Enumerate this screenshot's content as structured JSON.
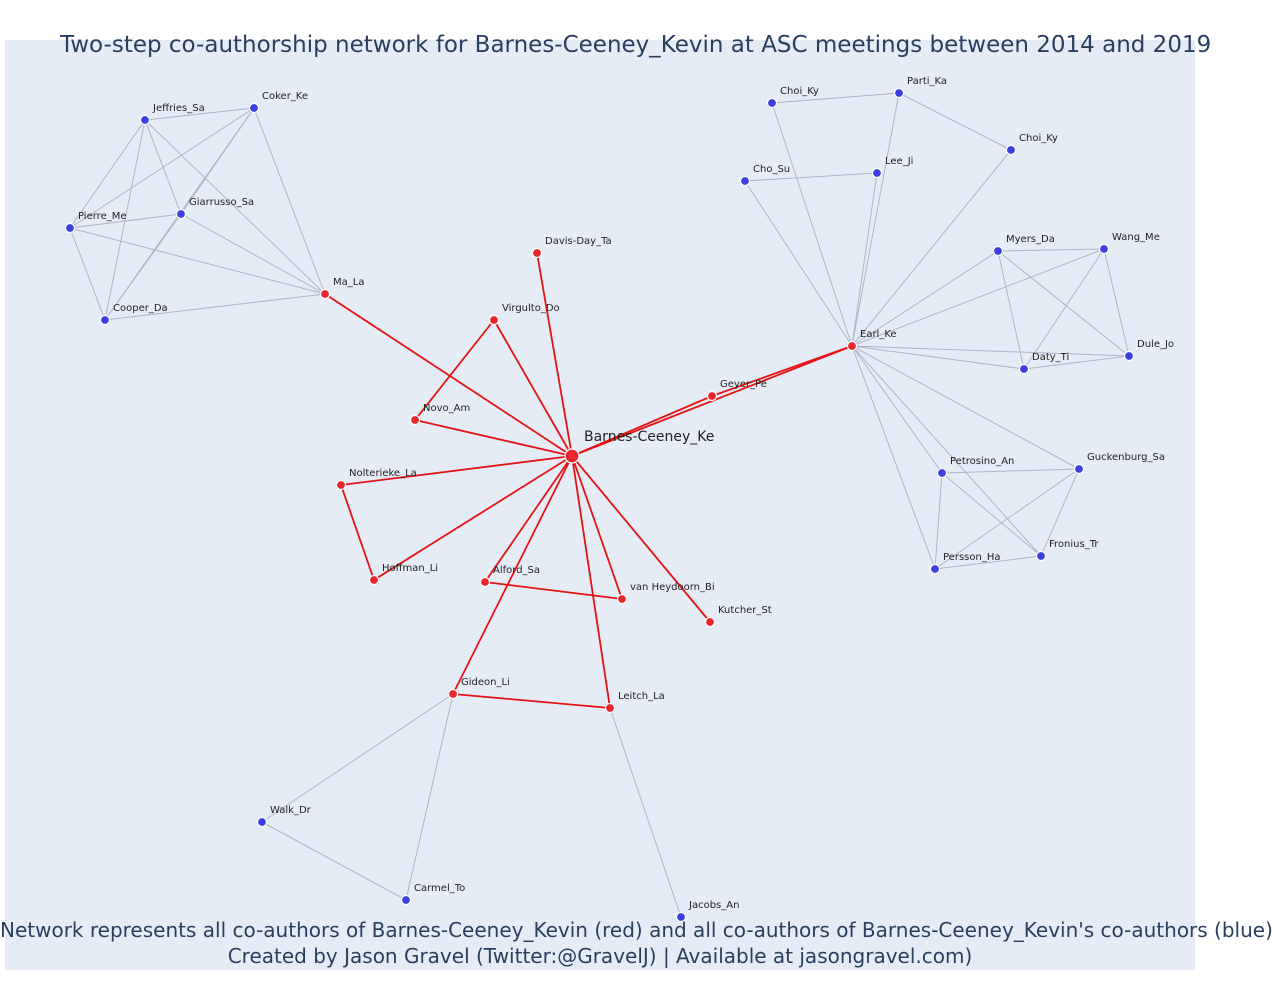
{
  "title": "Two-step co-authorship network for Barnes-Ceeney_Kevin at ASC meetings between 2014 and 2019",
  "footer": {
    "line1": "Network represents all co-authors of Barnes-Ceeney_Kevin (red) and all co-authors of Barnes-Ceeney_Kevin's co-authors (blue)",
    "line2": "Created by Jason Gravel (Twitter:@GravelJ) | Available at jasongravel.com)"
  },
  "colors": {
    "background": "#e5ecf6",
    "first_step": "#e8262d",
    "second_step": "#3d3fe0",
    "first_edge": "#e51414",
    "second_edge": "#b0b4c6",
    "text": "#2a3f5f"
  },
  "chart_data": {
    "type": "network",
    "center": "Barnes-Ceeney_Ke",
    "nodes": [
      {
        "id": "Barnes-Ceeney_Ke",
        "group": "center"
      },
      {
        "id": "Davis-Day_Ta",
        "group": "first_step"
      },
      {
        "id": "Virgulto_Do",
        "group": "first_step"
      },
      {
        "id": "Ma_La",
        "group": "first_step"
      },
      {
        "id": "Novo_Am",
        "group": "first_step"
      },
      {
        "id": "Nolterieke_La",
        "group": "first_step"
      },
      {
        "id": "Hoffman_Li",
        "group": "first_step"
      },
      {
        "id": "Alford_Sa",
        "group": "first_step"
      },
      {
        "id": "van Heydoorn_Bi",
        "group": "first_step"
      },
      {
        "id": "Kutcher_St",
        "group": "first_step"
      },
      {
        "id": "Gideon_Li",
        "group": "first_step"
      },
      {
        "id": "Leitch_La",
        "group": "first_step"
      },
      {
        "id": "Geyer_Pe",
        "group": "first_step"
      },
      {
        "id": "Earl_Ke",
        "group": "first_step"
      },
      {
        "id": "Jeffries_Sa",
        "group": "second_step"
      },
      {
        "id": "Coker_Ke",
        "group": "second_step"
      },
      {
        "id": "Giarrusso_Sa",
        "group": "second_step"
      },
      {
        "id": "Pierre_Me",
        "group": "second_step"
      },
      {
        "id": "Cooper_Da",
        "group": "second_step"
      },
      {
        "id": "Choi_Ky",
        "group": "second_step"
      },
      {
        "id": "Parti_Ka",
        "group": "second_step"
      },
      {
        "id": "Choi_Ky ",
        "group": "second_step"
      },
      {
        "id": "Cho_Su",
        "group": "second_step"
      },
      {
        "id": "Lee_Ji",
        "group": "second_step"
      },
      {
        "id": "Myers_Da",
        "group": "second_step"
      },
      {
        "id": "Wang_Me",
        "group": "second_step"
      },
      {
        "id": "Dule_Jo",
        "group": "second_step"
      },
      {
        "id": "Daty_Ti",
        "group": "second_step"
      },
      {
        "id": "Petrosino_An",
        "group": "second_step"
      },
      {
        "id": "Guckenburg_Sa",
        "group": "second_step"
      },
      {
        "id": "Persson_Ha",
        "group": "second_step"
      },
      {
        "id": "Fronius_Tr",
        "group": "second_step"
      },
      {
        "id": "Walk_Dr",
        "group": "second_step"
      },
      {
        "id": "Carmel_To",
        "group": "second_step"
      },
      {
        "id": "Jacobs_An",
        "group": "second_step"
      }
    ],
    "edges": [
      [
        "Barnes-Ceeney_Ke",
        "Davis-Day_Ta"
      ],
      [
        "Barnes-Ceeney_Ke",
        "Virgulto_Do"
      ],
      [
        "Barnes-Ceeney_Ke",
        "Ma_La"
      ],
      [
        "Barnes-Ceeney_Ke",
        "Novo_Am"
      ],
      [
        "Barnes-Ceeney_Ke",
        "Nolterieke_La"
      ],
      [
        "Barnes-Ceeney_Ke",
        "Hoffman_Li"
      ],
      [
        "Barnes-Ceeney_Ke",
        "Alford_Sa"
      ],
      [
        "Barnes-Ceeney_Ke",
        "van Heydoorn_Bi"
      ],
      [
        "Barnes-Ceeney_Ke",
        "Kutcher_St"
      ],
      [
        "Barnes-Ceeney_Ke",
        "Gideon_Li"
      ],
      [
        "Barnes-Ceeney_Ke",
        "Leitch_La"
      ],
      [
        "Barnes-Ceeney_Ke",
        "Geyer_Pe"
      ],
      [
        "Barnes-Ceeney_Ke",
        "Earl_Ke"
      ],
      [
        "Geyer_Pe",
        "Earl_Ke"
      ],
      [
        "Virgulto_Do",
        "Novo_Am"
      ],
      [
        "Nolterieke_La",
        "Hoffman_Li"
      ],
      [
        "Alford_Sa",
        "van Heydoorn_Bi"
      ],
      [
        "Gideon_Li",
        "Leitch_La"
      ],
      [
        "Ma_La",
        "Jeffries_Sa"
      ],
      [
        "Ma_La",
        "Coker_Ke"
      ],
      [
        "Ma_La",
        "Giarrusso_Sa"
      ],
      [
        "Ma_La",
        "Pierre_Me"
      ],
      [
        "Ma_La",
        "Cooper_Da"
      ],
      [
        "Jeffries_Sa",
        "Coker_Ke"
      ],
      [
        "Jeffries_Sa",
        "Giarrusso_Sa"
      ],
      [
        "Jeffries_Sa",
        "Pierre_Me"
      ],
      [
        "Jeffries_Sa",
        "Cooper_Da"
      ],
      [
        "Coker_Ke",
        "Giarrusso_Sa"
      ],
      [
        "Coker_Ke",
        "Pierre_Me"
      ],
      [
        "Coker_Ke",
        "Cooper_Da"
      ],
      [
        "Giarrusso_Sa",
        "Pierre_Me"
      ],
      [
        "Giarrusso_Sa",
        "Cooper_Da"
      ],
      [
        "Pierre_Me",
        "Cooper_Da"
      ],
      [
        "Earl_Ke",
        "Choi_Ky"
      ],
      [
        "Earl_Ke",
        "Parti_Ka"
      ],
      [
        "Earl_Ke",
        "Choi_Ky "
      ],
      [
        "Earl_Ke",
        "Cho_Su"
      ],
      [
        "Earl_Ke",
        "Lee_Ji"
      ],
      [
        "Choi_Ky",
        "Parti_Ka"
      ],
      [
        "Parti_Ka",
        "Choi_Ky "
      ],
      [
        "Cho_Su",
        "Lee_Ji"
      ],
      [
        "Earl_Ke",
        "Myers_Da"
      ],
      [
        "Earl_Ke",
        "Wang_Me"
      ],
      [
        "Earl_Ke",
        "Dule_Jo"
      ],
      [
        "Earl_Ke",
        "Daty_Ti"
      ],
      [
        "Myers_Da",
        "Wang_Me"
      ],
      [
        "Myers_Da",
        "Dule_Jo"
      ],
      [
        "Myers_Da",
        "Daty_Ti"
      ],
      [
        "Wang_Me",
        "Dule_Jo"
      ],
      [
        "Wang_Me",
        "Daty_Ti"
      ],
      [
        "Daty_Ti",
        "Dule_Jo"
      ],
      [
        "Earl_Ke",
        "Petrosino_An"
      ],
      [
        "Earl_Ke",
        "Guckenburg_Sa"
      ],
      [
        "Earl_Ke",
        "Persson_Ha"
      ],
      [
        "Earl_Ke",
        "Fronius_Tr"
      ],
      [
        "Petrosino_An",
        "Guckenburg_Sa"
      ],
      [
        "Petrosino_An",
        "Persson_Ha"
      ],
      [
        "Petrosino_An",
        "Fronius_Tr"
      ],
      [
        "Guckenburg_Sa",
        "Persson_Ha"
      ],
      [
        "Guckenburg_Sa",
        "Fronius_Tr"
      ],
      [
        "Persson_Ha",
        "Fronius_Tr"
      ],
      [
        "Gideon_Li",
        "Walk_Dr"
      ],
      [
        "Gideon_Li",
        "Carmel_To"
      ],
      [
        "Walk_Dr",
        "Carmel_To"
      ],
      [
        "Leitch_La",
        "Jacobs_An"
      ]
    ]
  }
}
